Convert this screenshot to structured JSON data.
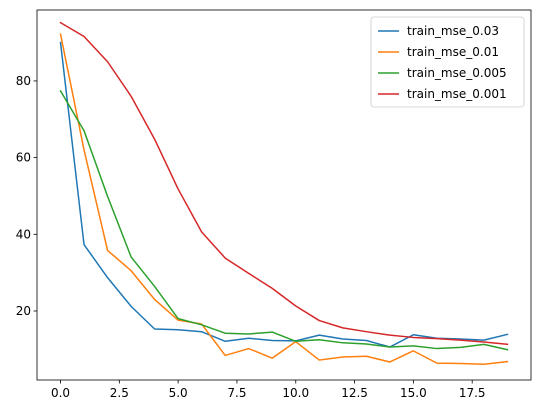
{
  "chart_data": {
    "type": "line",
    "title": "",
    "xlabel": "",
    "ylabel": "",
    "xlim": [
      -1.0,
      20.0
    ],
    "ylim": [
      2.0,
      98.5
    ],
    "grid": false,
    "legend_position": "top-right",
    "x_ticks": [
      0.0,
      2.5,
      5.0,
      7.5,
      10.0,
      12.5,
      15.0,
      17.5
    ],
    "x_tick_labels": [
      "0.0",
      "2.5",
      "5.0",
      "7.5",
      "10.0",
      "12.5",
      "15.0",
      "17.5"
    ],
    "y_ticks": [
      20,
      40,
      60,
      80
    ],
    "y_tick_labels": [
      "20",
      "40",
      "60",
      "80"
    ],
    "x": [
      0,
      1,
      2,
      3,
      4,
      5,
      6,
      7,
      8,
      9,
      10,
      11,
      12,
      13,
      14,
      15,
      16,
      17,
      18,
      19
    ],
    "series": [
      {
        "name": "train_mse_0.03",
        "color": "#1f77b4",
        "values": [
          90.0,
          37.3,
          28.7,
          21.2,
          15.3,
          15.1,
          14.6,
          12.1,
          12.9,
          12.3,
          12.2,
          13.7,
          12.7,
          12.3,
          10.6,
          13.8,
          12.9,
          12.7,
          12.4,
          13.9
        ]
      },
      {
        "name": "train_mse_0.01",
        "color": "#ff7f0e",
        "values": [
          92.2,
          62.0,
          35.8,
          30.5,
          23.0,
          17.6,
          16.6,
          8.4,
          10.2,
          7.7,
          12.0,
          7.2,
          8.0,
          8.2,
          6.7,
          9.6,
          6.4,
          6.3,
          6.1,
          6.8
        ]
      },
      {
        "name": "train_mse_0.005",
        "color": "#2ca02c",
        "values": [
          77.4,
          67.0,
          49.9,
          34.1,
          26.4,
          18.0,
          16.4,
          14.2,
          14.0,
          14.5,
          12.1,
          12.5,
          11.7,
          11.4,
          10.6,
          10.9,
          10.2,
          10.5,
          11.3,
          9.9
        ]
      },
      {
        "name": "train_mse_0.001",
        "color": "#d62728",
        "values": [
          95.2,
          91.6,
          85.0,
          76.0,
          64.8,
          51.8,
          40.6,
          33.8,
          29.8,
          25.9,
          21.3,
          17.5,
          15.6,
          14.6,
          13.7,
          13.1,
          12.8,
          12.4,
          11.9,
          11.3
        ]
      }
    ]
  }
}
